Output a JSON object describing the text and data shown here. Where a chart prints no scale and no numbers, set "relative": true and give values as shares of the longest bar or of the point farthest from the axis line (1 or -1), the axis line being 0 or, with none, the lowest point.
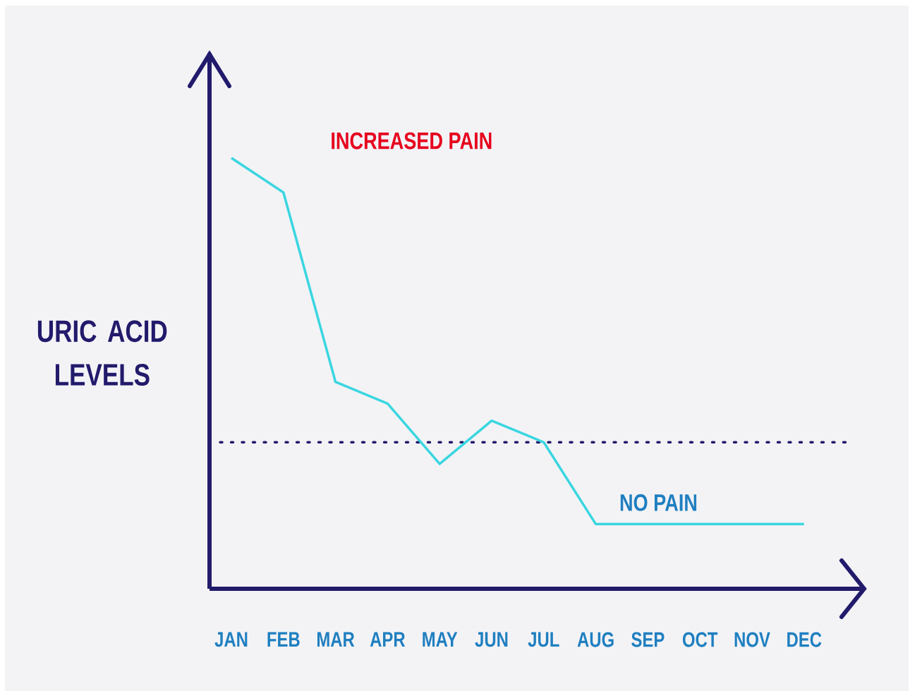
{
  "chart_data": {
    "type": "line",
    "relative": true,
    "ylabel": "URIC ACID LEVELS",
    "categories": [
      "JAN",
      "FEB",
      "MAR",
      "APR",
      "MAY",
      "JUN",
      "JUL",
      "AUG",
      "SEP",
      "OCT",
      "NOV",
      "DEC"
    ],
    "series": [
      {
        "color": "#3ad6e0",
        "values": [
          1,
          0.92,
          0.48,
          0.43,
          0.29,
          0.39,
          0.34,
          0.15,
          0.15,
          0.15,
          0.15,
          0.15
        ]
      }
    ],
    "ref_lines": [
      {
        "axis": "y",
        "value": 0.34,
        "color": "#221a6b",
        "line_style": "dotted"
      }
    ],
    "annotations": [
      {
        "text": "INCREASED PAIN",
        "x": "FEB",
        "y": 0.92
      },
      {
        "text": "NO PAIN",
        "x": "AUG",
        "y": 0.15
      }
    ],
    "marker": "none",
    "line_style": "solid"
  }
}
